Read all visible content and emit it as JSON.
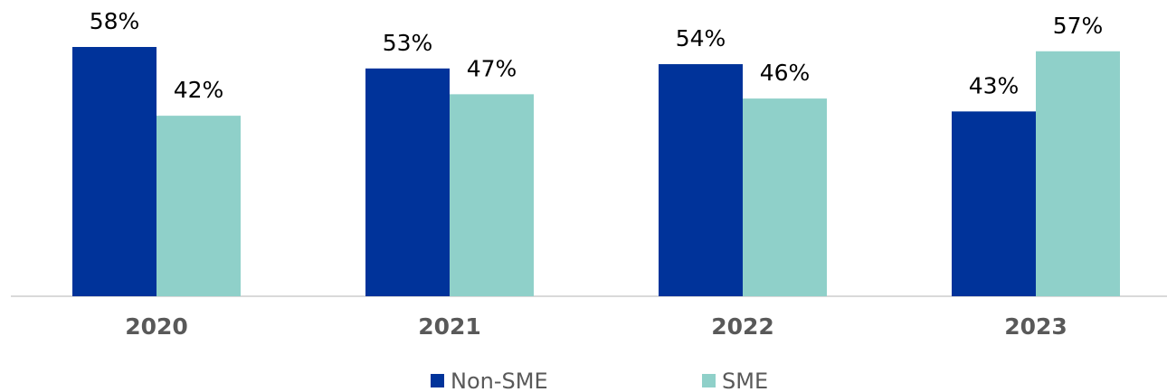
{
  "chart_data": {
    "type": "bar",
    "categories": [
      "2020",
      "2021",
      "2022",
      "2023"
    ],
    "series": [
      {
        "name": "Non-SME",
        "color": "#00339a",
        "values": [
          58,
          53,
          54,
          43
        ],
        "value_labels": [
          "58%",
          "53%",
          "54%",
          "43%"
        ]
      },
      {
        "name": "SME",
        "color": "#8fd0c9",
        "values": [
          42,
          47,
          46,
          57
        ],
        "value_labels": [
          "42%",
          "47%",
          "46%",
          "57%"
        ]
      }
    ]
  }
}
